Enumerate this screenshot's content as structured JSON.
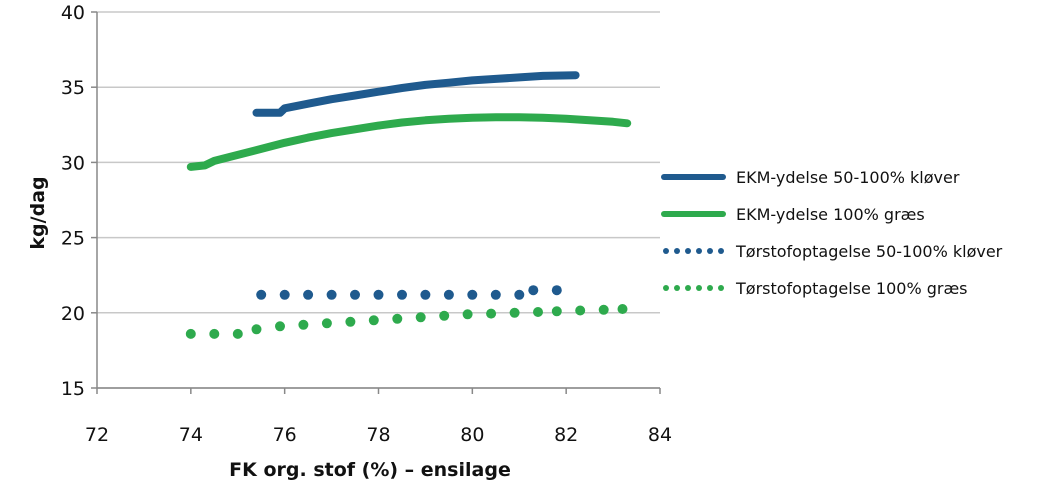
{
  "chart_data": {
    "type": "line",
    "xlabel": "FK org. stof (%) – ensilage",
    "ylabel": "kg/dag",
    "xlim": [
      72,
      84
    ],
    "ylim": [
      15,
      40
    ],
    "xticks": [
      "72",
      "74",
      "76",
      "78",
      "80",
      "82",
      "84"
    ],
    "yticks": [
      "15",
      "20",
      "25",
      "30",
      "35",
      "40"
    ],
    "grid": "horizontal",
    "legend_position": "right",
    "series": [
      {
        "name": "EKM-ydelse 50-100% kløver",
        "style": "solid",
        "color": "#1f5a8e",
        "points": [
          [
            75.4,
            33.3
          ],
          [
            75.9,
            33.3
          ],
          [
            76.0,
            33.6
          ],
          [
            76.5,
            33.9
          ],
          [
            77.0,
            34.2
          ],
          [
            77.5,
            34.45
          ],
          [
            78.0,
            34.7
          ],
          [
            78.5,
            34.95
          ],
          [
            79.0,
            35.15
          ],
          [
            79.5,
            35.3
          ],
          [
            80.0,
            35.45
          ],
          [
            80.5,
            35.55
          ],
          [
            81.0,
            35.65
          ],
          [
            81.5,
            35.75
          ],
          [
            82.2,
            35.8
          ]
        ]
      },
      {
        "name": "EKM-ydelse 100% græs",
        "style": "solid",
        "color": "#2eaa4d",
        "points": [
          [
            74.0,
            29.7
          ],
          [
            74.3,
            29.8
          ],
          [
            74.5,
            30.1
          ],
          [
            75.0,
            30.5
          ],
          [
            75.5,
            30.9
          ],
          [
            76.0,
            31.3
          ],
          [
            76.5,
            31.65
          ],
          [
            77.0,
            31.95
          ],
          [
            77.5,
            32.2
          ],
          [
            78.0,
            32.45
          ],
          [
            78.5,
            32.65
          ],
          [
            79.0,
            32.8
          ],
          [
            79.5,
            32.9
          ],
          [
            80.0,
            32.97
          ],
          [
            80.5,
            33.0
          ],
          [
            81.0,
            33.0
          ],
          [
            81.5,
            32.97
          ],
          [
            82.0,
            32.9
          ],
          [
            82.5,
            32.8
          ],
          [
            83.0,
            32.7
          ],
          [
            83.3,
            32.6
          ]
        ]
      },
      {
        "name": "Tørstofoptagelse 50-100% kløver",
        "style": "dotted",
        "color": "#1f5a8e",
        "points": [
          [
            75.5,
            21.2
          ],
          [
            76.0,
            21.2
          ],
          [
            76.5,
            21.2
          ],
          [
            77.0,
            21.2
          ],
          [
            77.5,
            21.2
          ],
          [
            78.0,
            21.2
          ],
          [
            78.5,
            21.2
          ],
          [
            79.0,
            21.2
          ],
          [
            79.5,
            21.2
          ],
          [
            80.0,
            21.2
          ],
          [
            80.5,
            21.2
          ],
          [
            81.0,
            21.2
          ],
          [
            81.3,
            21.5
          ],
          [
            81.8,
            21.5
          ]
        ]
      },
      {
        "name": "Tørstofoptagelse 100% græs",
        "style": "dotted",
        "color": "#2eaa4d",
        "points": [
          [
            74.0,
            18.6
          ],
          [
            74.5,
            18.6
          ],
          [
            75.0,
            18.6
          ],
          [
            75.4,
            18.9
          ],
          [
            75.9,
            19.1
          ],
          [
            76.4,
            19.2
          ],
          [
            76.9,
            19.3
          ],
          [
            77.4,
            19.4
          ],
          [
            77.9,
            19.5
          ],
          [
            78.4,
            19.6
          ],
          [
            78.9,
            19.7
          ],
          [
            79.4,
            19.8
          ],
          [
            79.9,
            19.9
          ],
          [
            80.4,
            19.95
          ],
          [
            80.9,
            20.0
          ],
          [
            81.4,
            20.05
          ],
          [
            81.8,
            20.1
          ],
          [
            82.3,
            20.15
          ],
          [
            82.8,
            20.2
          ],
          [
            83.2,
            20.25
          ]
        ]
      }
    ]
  }
}
